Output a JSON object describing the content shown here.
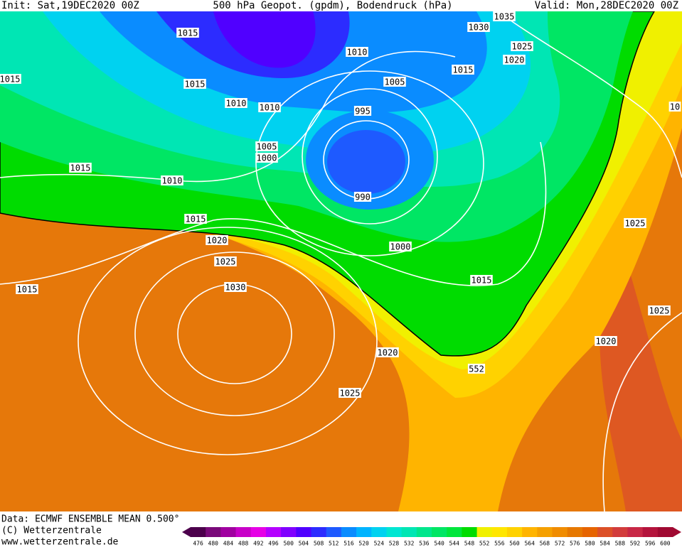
{
  "header": {
    "init": "Init: Sat,19DEC2020 00Z",
    "title": "500 hPa Geopot. (gpdm), Bodendruck (hPa)",
    "valid": "Valid: Mon,28DEC2020 00Z"
  },
  "map": {
    "contour_labels": [
      "1015",
      "1015",
      "1015",
      "1010",
      "1010",
      "1010",
      "1005",
      "995",
      "1005",
      "1000",
      "1015",
      "1010",
      "990",
      "1015",
      "1020",
      "1000",
      "1025",
      "1015",
      "1030",
      "1015",
      "1020",
      "552",
      "1025",
      "1035",
      "1030",
      "1025",
      "1020",
      "1015",
      "10",
      "1025",
      "1025",
      "1020"
    ]
  },
  "footer": {
    "data": "Data: ECMWF ENSEMBLE MEAN 0.500°",
    "copyright": "(C) Wetterzentrale",
    "url": "www.wetterzentrale.de"
  },
  "scale": [
    {
      "label": 476,
      "color": "#4c004c"
    },
    {
      "label": 480,
      "color": "#7a0a7a"
    },
    {
      "label": 484,
      "color": "#a000a0"
    },
    {
      "label": 488,
      "color": "#c800c8"
    },
    {
      "label": 492,
      "color": "#e600e6"
    },
    {
      "label": 496,
      "color": "#b400ff"
    },
    {
      "label": 500,
      "color": "#8000ff"
    },
    {
      "label": 504,
      "color": "#5000ff"
    },
    {
      "label": 508,
      "color": "#2c2cff"
    },
    {
      "label": 512,
      "color": "#1e5aff"
    },
    {
      "label": 516,
      "color": "#0a8cff"
    },
    {
      "label": 520,
      "color": "#00b4ff"
    },
    {
      "label": 524,
      "color": "#00d2f0"
    },
    {
      "label": 528,
      "color": "#00e6d2"
    },
    {
      "label": 532,
      "color": "#00e6b4"
    },
    {
      "label": 536,
      "color": "#00e68c"
    },
    {
      "label": 540,
      "color": "#00e664"
    },
    {
      "label": 544,
      "color": "#00e63c"
    },
    {
      "label": 548,
      "color": "#00dc00"
    },
    {
      "label": 552,
      "color": "#f0f000"
    },
    {
      "label": 556,
      "color": "#ffe600"
    },
    {
      "label": 560,
      "color": "#ffd200"
    },
    {
      "label": 564,
      "color": "#ffb400"
    },
    {
      "label": 568,
      "color": "#f5a000"
    },
    {
      "label": 572,
      "color": "#f08c00"
    },
    {
      "label": 576,
      "color": "#e67800"
    },
    {
      "label": 580,
      "color": "#e66400"
    },
    {
      "label": 584,
      "color": "#dc5028"
    },
    {
      "label": 588,
      "color": "#d23c3c"
    },
    {
      "label": 592,
      "color": "#c82846"
    },
    {
      "label": 596,
      "color": "#b4143c"
    },
    {
      "label": 600,
      "color": "#a00a32"
    }
  ]
}
